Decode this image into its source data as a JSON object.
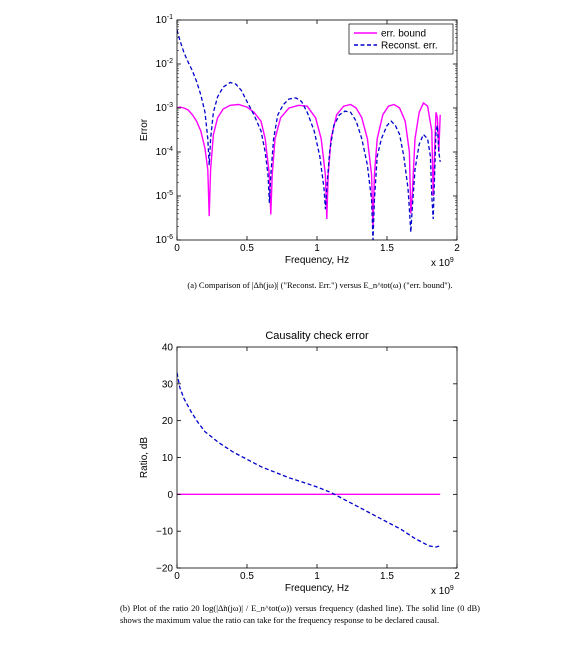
{
  "captions": {
    "a": "(a) Comparison of |Δ̃n(jω)| (\"Reconst. Err.\") versus E_n^tot(ω) (\"err. bound\").",
    "b": "(b) Plot of the ratio 20 log(|Δ̃n(jω)| / E_n^tot(ω)) versus frequency (dashed line). The solid line (0 dB) shows the maximum value the ratio can take for the frequency response to be declared causal."
  },
  "chart_data": [
    {
      "type": "line",
      "title": "",
      "xlabel": "Frequency, Hz",
      "ylabel": "Error",
      "x_multiplier_label": "x 10^9",
      "xlim": [
        0,
        2
      ],
      "ylim": [
        1e-06,
        0.1
      ],
      "yscale": "log",
      "grid": false,
      "legend": "top-right",
      "x_ticks": [
        "0",
        "0.5",
        "1",
        "1.5",
        "2"
      ],
      "y_ticks": [
        "10^-6",
        "10^-5",
        "10^-4",
        "10^-3",
        "10^-2",
        "10^-1"
      ],
      "series": [
        {
          "name": "err. bound",
          "color": "#ff00ff",
          "style": "solid",
          "x": [
            0,
            0.02,
            0.05,
            0.08,
            0.11,
            0.14,
            0.17,
            0.2,
            0.22,
            0.23,
            0.24,
            0.26,
            0.29,
            0.33,
            0.38,
            0.44,
            0.5,
            0.55,
            0.6,
            0.63,
            0.66,
            0.67,
            0.68,
            0.7,
            0.74,
            0.8,
            0.87,
            0.93,
            0.99,
            1.03,
            1.06,
            1.07,
            1.08,
            1.1,
            1.14,
            1.19,
            1.24,
            1.28,
            1.32,
            1.36,
            1.39,
            1.4,
            1.41,
            1.43,
            1.47,
            1.51,
            1.55,
            1.59,
            1.63,
            1.66,
            1.67,
            1.68,
            1.7,
            1.73,
            1.76,
            1.79,
            1.82,
            1.83,
            1.84,
            1.85,
            1.86,
            1.87,
            1.88
          ],
          "y": [
            0.001,
            0.00105,
            0.001,
            0.0009,
            0.0007,
            0.0005,
            0.0003,
            0.00012,
            4e-05,
            3.5e-06,
            4e-05,
            0.00025,
            0.0006,
            0.00095,
            0.00115,
            0.0012,
            0.00105,
            0.0008,
            0.0005,
            0.0002,
            3e-05,
            3.8e-06,
            3e-05,
            0.0002,
            0.0006,
            0.001,
            0.00115,
            0.0011,
            0.0006,
            0.0002,
            3e-05,
            3e-06,
            3e-05,
            0.0002,
            0.0007,
            0.0011,
            0.0012,
            0.001,
            0.0006,
            0.0002,
            3e-05,
            2e-06,
            3e-05,
            0.0002,
            0.0007,
            0.0011,
            0.0012,
            0.001,
            0.0005,
            0.0001,
            4e-06,
            1e-05,
            0.0002,
            0.0008,
            0.0013,
            0.0011,
            0.0003,
            1e-05,
            0.0001,
            0.0008,
            0.0006,
            0.0001,
            0.0007
          ]
        },
        {
          "name": "Reconst. err.",
          "color": "#0000cc",
          "style": "dashed",
          "x": [
            0,
            0.02,
            0.05,
            0.08,
            0.11,
            0.14,
            0.17,
            0.2,
            0.22,
            0.23,
            0.24,
            0.26,
            0.29,
            0.33,
            0.38,
            0.42,
            0.46,
            0.5,
            0.55,
            0.6,
            0.63,
            0.65,
            0.66,
            0.67,
            0.69,
            0.72,
            0.76,
            0.8,
            0.85,
            0.89,
            0.93,
            0.98,
            1.02,
            1.05,
            1.06,
            1.07,
            1.09,
            1.12,
            1.16,
            1.2,
            1.24,
            1.28,
            1.32,
            1.36,
            1.39,
            1.4,
            1.41,
            1.43,
            1.46,
            1.5,
            1.53,
            1.56,
            1.59,
            1.62,
            1.65,
            1.66,
            1.67,
            1.68,
            1.7,
            1.73,
            1.76,
            1.79,
            1.81,
            1.82,
            1.83,
            1.84,
            1.85,
            1.86,
            1.87,
            1.88
          ],
          "y": [
            0.06,
            0.035,
            0.018,
            0.011,
            0.007,
            0.004,
            0.002,
            0.0008,
            0.0002,
            5e-05,
            0.0002,
            0.0008,
            0.0018,
            0.003,
            0.0038,
            0.0035,
            0.0025,
            0.0014,
            0.0007,
            0.0003,
            0.0001,
            3e-05,
            7e-06,
            3e-05,
            0.0002,
            0.0007,
            0.0012,
            0.0016,
            0.0017,
            0.0014,
            0.0008,
            0.0003,
            8e-05,
            1.5e-05,
            5e-06,
            1.5e-05,
            0.0001,
            0.0004,
            0.0007,
            0.00085,
            0.0008,
            0.0005,
            0.0002,
            5e-05,
            8e-06,
            1e-06,
            8e-06,
            8e-05,
            0.0002,
            0.0004,
            0.0005,
            0.0004,
            0.00025,
            8e-05,
            1.5e-05,
            5e-06,
            1.5e-06,
            5e-06,
            4e-05,
            0.00015,
            0.00025,
            0.0002,
            8e-05,
            1e-05,
            3e-06,
            3e-05,
            0.0003,
            0.0004,
            0.0001,
            6e-05
          ]
        }
      ]
    },
    {
      "type": "line",
      "title": "Causality check error",
      "xlabel": "Frequency, Hz",
      "ylabel": "Ratio, dB",
      "x_multiplier_label": "x 10^9",
      "xlim": [
        0,
        2
      ],
      "ylim": [
        -20,
        40
      ],
      "yscale": "linear",
      "grid": false,
      "x_ticks": [
        "0",
        "0.5",
        "1",
        "1.5",
        "2"
      ],
      "y_ticks": [
        "−20",
        "−10",
        "0",
        "10",
        "20",
        "30",
        "40"
      ],
      "series": [
        {
          "color": "#ff00ff",
          "style": "solid",
          "x": [
            0,
            1.88
          ],
          "y": [
            0,
            0
          ]
        },
        {
          "color": "#0000cc",
          "style": "dashed",
          "x": [
            0,
            0.02,
            0.05,
            0.1,
            0.15,
            0.2,
            0.3,
            0.4,
            0.5,
            0.6,
            0.7,
            0.8,
            0.9,
            1.0,
            1.1,
            1.2,
            1.3,
            1.4,
            1.5,
            1.6,
            1.7,
            1.75,
            1.8,
            1.85,
            1.88
          ],
          "y": [
            33,
            29,
            26,
            22.5,
            19.5,
            17,
            14,
            11.5,
            9.5,
            7.5,
            6,
            4.5,
            3.3,
            2,
            0.5,
            -1.5,
            -3.5,
            -5.5,
            -7.5,
            -9.5,
            -12,
            -13,
            -14,
            -14.3,
            -14
          ]
        }
      ]
    }
  ]
}
